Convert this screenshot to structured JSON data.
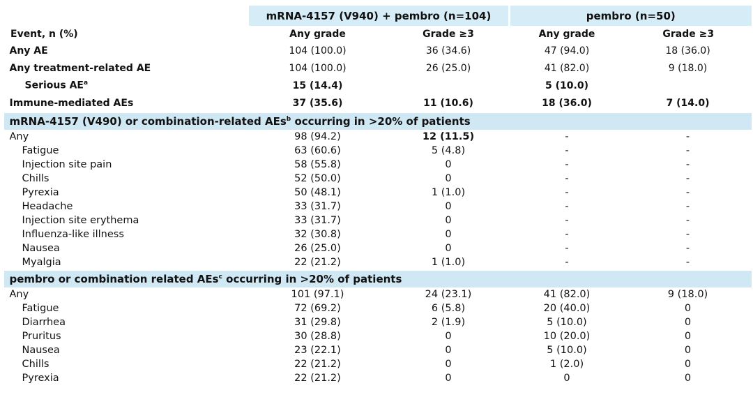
{
  "header": {
    "groups": [
      "mRNA-4157 (V940) + pembro (n=104)",
      "pembro (n=50)"
    ],
    "columns": [
      "Event, n (%)",
      "Any grade",
      "Grade ≥3",
      "Any grade",
      "Grade ≥3"
    ]
  },
  "sections": [
    {
      "title": null,
      "bold_labels": true,
      "rows": [
        {
          "label": "Any AE",
          "cells": [
            "104 (100.0)",
            "36 (34.6)",
            "47 (94.0)",
            "18 (36.0)"
          ]
        },
        {
          "label": "Any treatment-related AE",
          "cells": [
            "104 (100.0)",
            "26 (25.0)",
            "41 (82.0)",
            "9 (18.0)"
          ]
        },
        {
          "label": "Serious AE",
          "sup": "a",
          "indent": true,
          "bold_values": true,
          "cells": [
            "15 (14.4)",
            null,
            "5 (10.0)",
            null
          ]
        },
        {
          "label": "Immune-mediated AEs",
          "bold_values": true,
          "cells": [
            "37 (35.6)",
            "11 (10.6)",
            "18 (36.0)",
            "7 (14.0)"
          ]
        }
      ]
    },
    {
      "title": {
        "text": "mRNA-4157 (V490) or combination-related AEs",
        "sup": "b",
        "rest": " occurring in >20% of patients"
      },
      "bold_labels": false,
      "rows": [
        {
          "label": "Any",
          "cells": [
            "98 (94.2)",
            {
              "text": "12 (11.5)",
              "bold": true
            },
            "-",
            "-"
          ]
        },
        {
          "label": "Fatigue",
          "indent": true,
          "cells": [
            "63 (60.6)",
            "5 (4.8)",
            "-",
            "-"
          ]
        },
        {
          "label": "Injection site pain",
          "indent": true,
          "cells": [
            "58 (55.8)",
            "0",
            "-",
            "-"
          ]
        },
        {
          "label": "Chills",
          "indent": true,
          "cells": [
            "52 (50.0)",
            "0",
            "-",
            "-"
          ]
        },
        {
          "label": "Pyrexia",
          "indent": true,
          "cells": [
            "50 (48.1)",
            "1 (1.0)",
            "-",
            "-"
          ]
        },
        {
          "label": "Headache",
          "indent": true,
          "cells": [
            "33 (31.7)",
            "0",
            "-",
            "-"
          ]
        },
        {
          "label": "Injection site erythema",
          "indent": true,
          "cells": [
            "33 (31.7)",
            "0",
            "-",
            "-"
          ]
        },
        {
          "label": "Influenza-like illness",
          "indent": true,
          "cells": [
            "32 (30.8)",
            "0",
            "-",
            "-"
          ]
        },
        {
          "label": "Nausea",
          "indent": true,
          "cells": [
            "26 (25.0)",
            "0",
            "-",
            "-"
          ]
        },
        {
          "label": "Myalgia",
          "indent": true,
          "cells": [
            "22 (21.2)",
            "1 (1.0)",
            "-",
            "-"
          ]
        }
      ]
    },
    {
      "title": {
        "text": "pembro or combination related AEs",
        "sup": "c",
        "rest": " occurring in >20% of patients"
      },
      "bold_labels": false,
      "rows": [
        {
          "label": "Any",
          "cells": [
            "101 (97.1)",
            "24 (23.1)",
            "41 (82.0)",
            "9 (18.0)"
          ]
        },
        {
          "label": "Fatigue",
          "indent": true,
          "cells": [
            "72 (69.2)",
            "6 (5.8)",
            "20 (40.0)",
            "0"
          ]
        },
        {
          "label": "Diarrhea",
          "indent": true,
          "cells": [
            "31 (29.8)",
            "2 (1.9)",
            "5 (10.0)",
            "0"
          ]
        },
        {
          "label": "Pruritus",
          "indent": true,
          "cells": [
            "30 (28.8)",
            "0",
            "10 (20.0)",
            "0"
          ]
        },
        {
          "label": "Nausea",
          "indent": true,
          "cells": [
            "23 (22.1)",
            "0",
            "5 (10.0)",
            "0"
          ]
        },
        {
          "label": "Chills",
          "indent": true,
          "cells": [
            "22 (21.2)",
            "0",
            "1 (2.0)",
            "0"
          ]
        },
        {
          "label": "Pyrexia",
          "indent": true,
          "cells": [
            "22 (21.2)",
            "0",
            "0",
            "0"
          ]
        }
      ]
    }
  ]
}
